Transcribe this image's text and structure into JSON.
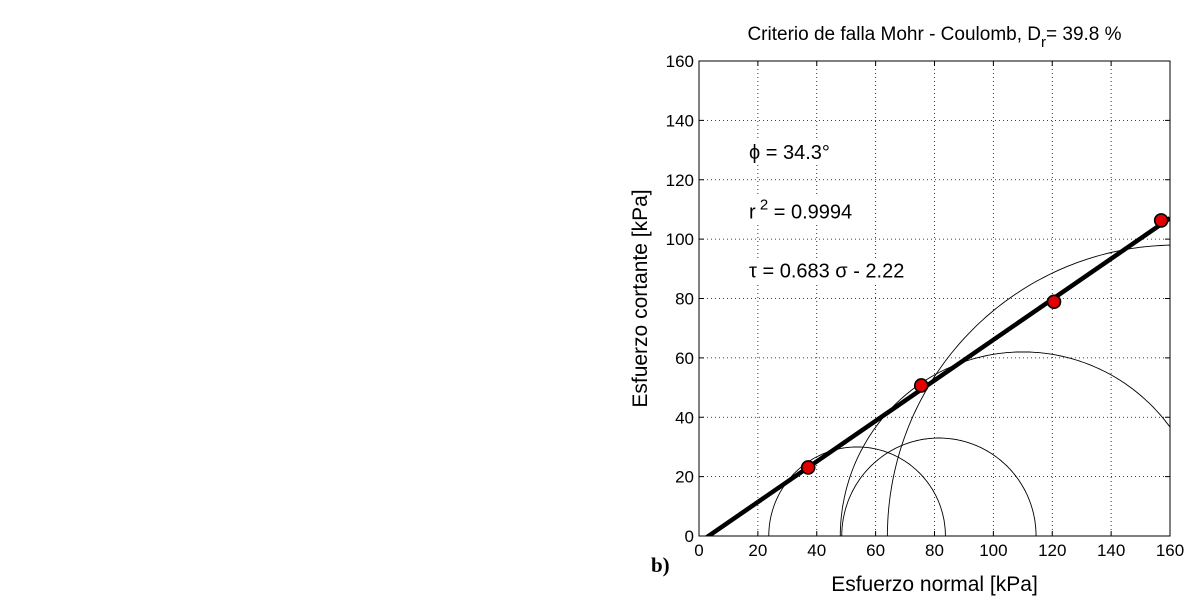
{
  "chart_data": [
    {
      "type": "scatter",
      "panel_label": "b)",
      "title": "Criterio de falla Mohr - Coulomb, D",
      "title_subscript": "r",
      "title_suffix": "= 39.8 %",
      "xlabel": "Esfuerzo normal [kPa]",
      "ylabel": "Esfuerzo cortante [kPa]",
      "xlim": [
        0,
        160
      ],
      "ylim": [
        0,
        160
      ],
      "xticks": [
        0,
        20,
        40,
        60,
        80,
        100,
        120,
        140,
        160
      ],
      "yticks": [
        0,
        20,
        40,
        60,
        80,
        100,
        120,
        140,
        160
      ],
      "grid": true,
      "annotations": {
        "phi": "ϕ  = 34.3°",
        "r2_base": "r",
        "r2_sup": "2",
        "r2_rest": " = 0.9994",
        "equation": "τ = 0.683 σ - 2.22"
      },
      "points": {
        "x": [
          37.1,
          75.5,
          120.6,
          157.0
        ],
        "y": [
          23.1,
          50.7,
          78.9,
          106.3
        ]
      },
      "fit_line": {
        "slope": 0.683,
        "intercept": -2.22
      },
      "mohr_circles": [
        {
          "center": 53.7,
          "radius": 30.0
        },
        {
          "center": 81.5,
          "radius": 33.0
        },
        {
          "center": 110.0,
          "radius": 62.0
        },
        {
          "center": 162.0,
          "radius": 98.0
        }
      ],
      "colors": {
        "points": "#e00000",
        "line": "#000000"
      }
    }
  ]
}
